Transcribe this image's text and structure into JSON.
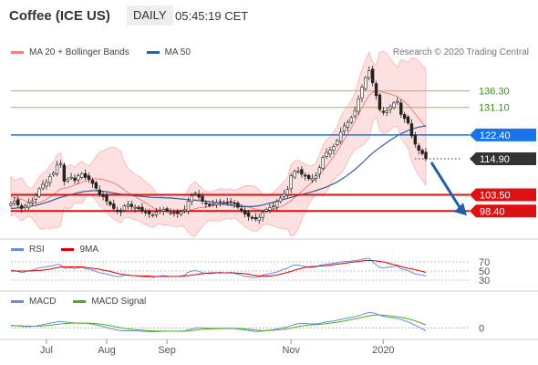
{
  "header": {
    "title": "Coffee (ICE US)",
    "period": "DAILY",
    "time": "05:45:19 CET"
  },
  "copyright": "Research © 2020 Trading Central",
  "legend_main": [
    {
      "label": "MA 20 + Bollinger Bands",
      "color": "#f08080"
    },
    {
      "label": "MA 50",
      "color": "#2f5f9f"
    }
  ],
  "legend_rsi": [
    {
      "label": "RSI",
      "color": "#6a8fd8"
    },
    {
      "label": "9MA",
      "color": "#e00000"
    }
  ],
  "legend_macd": [
    {
      "label": "MACD",
      "color": "#6a8fd8"
    },
    {
      "label": "MACD Signal",
      "color": "#4caf1a"
    }
  ],
  "chart_data": [
    {
      "type": "candlestick",
      "xlabels": [
        "Jul",
        "Aug",
        "Sep",
        "Nov",
        "2020"
      ],
      "ylim": [
        93,
        146
      ],
      "levels": [
        {
          "value": 136.3,
          "label": "136.30",
          "kind": "resistance-line",
          "color": "#8cc63f"
        },
        {
          "value": 131.1,
          "label": "131.10",
          "kind": "resistance-line",
          "color": "#8cc63f"
        },
        {
          "value": 122.4,
          "label": "122.40",
          "kind": "pivot",
          "color": "#1a73e8"
        },
        {
          "value": 114.9,
          "label": "114.90",
          "kind": "last-price",
          "color": "#333333"
        },
        {
          "value": 103.5,
          "label": "103.50",
          "kind": "support",
          "color": "#dd1111"
        },
        {
          "value": 98.4,
          "label": "98.40",
          "kind": "support",
          "color": "#dd1111"
        }
      ],
      "close": [
        100.8,
        101.5,
        100.3,
        99.2,
        100.1,
        101.0,
        101.6,
        103.3,
        105.4,
        106.8,
        107.4,
        109.3,
        110.4,
        112.9,
        113.4,
        107.8,
        108.5,
        109.1,
        108.0,
        109.5,
        110.2,
        109.0,
        108.4,
        107.1,
        105.6,
        103.6,
        102.9,
        101.5,
        100.4,
        99.2,
        98.6,
        98.1,
        100.0,
        100.3,
        99.8,
        99.6,
        99.1,
        98.4,
        98.0,
        97.5,
        97.2,
        98.0,
        98.6,
        98.9,
        98.4,
        97.9,
        97.7,
        97.6,
        98.2,
        98.9,
        101.5,
        103.2,
        104.0,
        102.8,
        101.5,
        100.6,
        100.1,
        100.6,
        101.0,
        101.4,
        101.2,
        100.9,
        101.3,
        100.7,
        99.6,
        98.6,
        97.4,
        96.7,
        96.1,
        95.9,
        96.4,
        97.9,
        98.9,
        99.5,
        100.1,
        101.4,
        102.5,
        103.8,
        105.2,
        109.6,
        110.9,
        111.0,
        110.0,
        109.4,
        108.6,
        108.7,
        109.5,
        112.1,
        115.4,
        116.9,
        117.6,
        118.8,
        120.6,
        123.4,
        125.3,
        126.4,
        127.9,
        130.1,
        133.8,
        137.5,
        140.5,
        142.7,
        138.9,
        134.8,
        130.4,
        129.5,
        130.0,
        131.3,
        132.5,
        133.0,
        128.9,
        127.6,
        126.2,
        122.1,
        119.5,
        117.6,
        116.5,
        114.9
      ],
      "ma20": [
        103.0,
        102.7,
        102.4,
        102.1,
        101.6,
        101.2,
        100.9,
        100.9,
        101.1,
        101.5,
        102.1,
        102.8,
        103.6,
        104.6,
        105.4,
        105.6,
        105.8,
        106.2,
        106.6,
        107.1,
        107.5,
        107.8,
        108.2,
        108.5,
        108.6,
        108.5,
        108.3,
        108.0,
        107.7,
        107.2,
        106.6,
        105.9,
        105.1,
        104.2,
        103.5,
        102.9,
        102.3,
        101.6,
        100.9,
        100.2,
        99.5,
        99.0,
        98.7,
        98.5,
        98.3,
        98.2,
        98.1,
        98.0,
        98.1,
        98.2,
        98.5,
        98.8,
        99.1,
        99.4,
        99.5,
        99.7,
        99.9,
        100.0,
        100.2,
        100.4,
        100.5,
        100.6,
        100.6,
        100.6,
        100.4,
        100.2,
        99.9,
        99.6,
        99.3,
        99.0,
        98.8,
        98.7,
        98.7,
        98.8,
        99.0,
        99.3,
        99.7,
        100.2,
        100.9,
        101.7,
        102.6,
        103.6,
        104.6,
        105.6,
        106.6,
        107.6,
        108.6,
        109.8,
        111.2,
        112.6,
        114.1,
        115.6,
        117.3,
        119.1,
        120.9,
        122.8,
        124.7,
        126.7,
        128.8,
        131.0,
        133.1,
        134.9,
        135.9,
        136.2,
        136.2,
        135.9,
        135.6,
        135.3,
        134.9,
        134.5,
        133.7,
        132.8,
        131.8,
        130.5,
        129.1,
        127.7,
        126.3,
        124.9
      ],
      "ma50": [
        99.2,
        99.3,
        99.4,
        99.5,
        99.6,
        99.8,
        100.0,
        100.2,
        100.5,
        100.8,
        101.1,
        101.5,
        101.9,
        102.3,
        102.7,
        103.0,
        103.3,
        103.6,
        103.9,
        104.2,
        104.4,
        104.6,
        104.7,
        104.8,
        104.8,
        104.7,
        104.6,
        104.5,
        104.3,
        104.1,
        103.9,
        103.7,
        103.5,
        103.4,
        103.3,
        103.2,
        103.1,
        103.0,
        102.9,
        102.8,
        102.7,
        102.7,
        102.6,
        102.6,
        102.5,
        102.5,
        102.4,
        102.3,
        102.2,
        102.1,
        102.0,
        101.9,
        101.8,
        101.7,
        101.6,
        101.5,
        101.4,
        101.2,
        101.0,
        100.8,
        100.6,
        100.4,
        100.2,
        100.0,
        99.9,
        99.8,
        99.8,
        99.8,
        99.8,
        99.9,
        100.1,
        100.3,
        100.6,
        100.9,
        101.2,
        101.5,
        101.8,
        102.1,
        102.4,
        102.7,
        103.0,
        103.3,
        103.6,
        103.9,
        104.2,
        104.5,
        104.8,
        105.2,
        105.6,
        106.0,
        106.5,
        107.0,
        107.6,
        108.3,
        109.0,
        109.8,
        110.6,
        111.5,
        112.5,
        113.5,
        114.6,
        115.7,
        116.7,
        117.6,
        118.4,
        119.2,
        120.0,
        120.8,
        121.5,
        122.2,
        122.8,
        123.3,
        123.8,
        124.2,
        124.6,
        124.9,
        125.1,
        125.3
      ]
    },
    {
      "type": "line",
      "name": "RSI",
      "yticks": [
        70,
        50,
        30
      ],
      "ylim": [
        20,
        80
      ],
      "series": [
        {
          "name": "RSI",
          "values": [
            52,
            51,
            49,
            47,
            48,
            51,
            52,
            54,
            57,
            58,
            59,
            61,
            62,
            64,
            64,
            56,
            56,
            57,
            55,
            57,
            58,
            55,
            54,
            52,
            49,
            46,
            45,
            43,
            41,
            39,
            38,
            38,
            41,
            41,
            40,
            40,
            39,
            38,
            37,
            37,
            36,
            38,
            39,
            40,
            39,
            38,
            38,
            38,
            39,
            41,
            47,
            50,
            51,
            49,
            46,
            45,
            44,
            45,
            46,
            47,
            46,
            46,
            47,
            45,
            43,
            41,
            38,
            37,
            36,
            36,
            37,
            41,
            43,
            44,
            46,
            48,
            51,
            54,
            56,
            61,
            63,
            63,
            61,
            60,
            58,
            58,
            59,
            62,
            64,
            65,
            66,
            67,
            68,
            70,
            71,
            71,
            72,
            73,
            74,
            76,
            77,
            78,
            70,
            64,
            58,
            57,
            58,
            59,
            60,
            61,
            55,
            53,
            51,
            47,
            44,
            42,
            41,
            39
          ]
        },
        {
          "name": "9MA",
          "values": [
            50,
            50,
            50,
            50,
            50,
            50,
            50,
            51,
            51,
            52,
            53,
            54,
            56,
            57,
            59,
            59,
            59,
            59,
            59,
            59,
            59,
            58,
            57,
            56,
            55,
            54,
            52,
            51,
            49,
            47,
            45,
            43,
            42,
            41,
            40,
            40,
            39,
            39,
            39,
            39,
            38,
            38,
            38,
            38,
            38,
            38,
            38,
            38,
            38,
            39,
            40,
            41,
            42,
            43,
            44,
            45,
            46,
            46,
            46,
            46,
            46,
            46,
            46,
            46,
            45,
            45,
            44,
            43,
            41,
            40,
            39,
            39,
            39,
            39,
            40,
            41,
            43,
            45,
            47,
            49,
            52,
            54,
            56,
            58,
            59,
            60,
            60,
            61,
            61,
            62,
            63,
            64,
            65,
            66,
            67,
            68,
            69,
            70,
            71,
            72,
            73,
            73,
            73,
            72,
            71,
            70,
            68,
            66,
            64,
            62,
            60,
            58,
            56,
            55,
            53,
            51,
            49,
            47
          ]
        }
      ]
    },
    {
      "type": "line",
      "name": "MACD",
      "yticks": [
        0
      ],
      "ylim": [
        -1.5,
        3.5
      ],
      "series": [
        {
          "name": "MACD",
          "values": [
            0.6,
            0.55,
            0.45,
            0.35,
            0.3,
            0.3,
            0.35,
            0.45,
            0.6,
            0.75,
            0.9,
            1.05,
            1.2,
            1.35,
            1.45,
            1.35,
            1.25,
            1.2,
            1.1,
            1.1,
            1.1,
            1.05,
            0.95,
            0.85,
            0.7,
            0.5,
            0.3,
            0.1,
            -0.1,
            -0.3,
            -0.45,
            -0.6,
            -0.6,
            -0.6,
            -0.6,
            -0.6,
            -0.65,
            -0.7,
            -0.75,
            -0.8,
            -0.85,
            -0.8,
            -0.75,
            -0.7,
            -0.7,
            -0.7,
            -0.7,
            -0.7,
            -0.65,
            -0.6,
            -0.4,
            -0.2,
            0.0,
            0.05,
            0.05,
            0.0,
            -0.05,
            -0.05,
            -0.05,
            -0.05,
            -0.05,
            -0.05,
            -0.05,
            -0.1,
            -0.2,
            -0.3,
            -0.45,
            -0.55,
            -0.65,
            -0.75,
            -0.75,
            -0.65,
            -0.55,
            -0.45,
            -0.35,
            -0.2,
            -0.05,
            0.1,
            0.25,
            0.55,
            0.8,
            0.95,
            1.0,
            1.0,
            0.95,
            0.9,
            0.9,
            1.0,
            1.2,
            1.35,
            1.45,
            1.55,
            1.7,
            1.9,
            2.05,
            2.2,
            2.35,
            2.5,
            2.7,
            2.95,
            3.2,
            3.4,
            3.35,
            3.15,
            2.85,
            2.6,
            2.4,
            2.3,
            2.2,
            2.1,
            1.85,
            1.6,
            1.35,
            1.0,
            0.6,
            0.2,
            -0.2,
            -0.6
          ]
        },
        {
          "name": "MACD Signal",
          "values": [
            0.5,
            0.5,
            0.5,
            0.48,
            0.45,
            0.42,
            0.4,
            0.4,
            0.42,
            0.46,
            0.52,
            0.6,
            0.7,
            0.8,
            0.9,
            0.98,
            1.03,
            1.07,
            1.08,
            1.08,
            1.08,
            1.08,
            1.06,
            1.02,
            0.96,
            0.88,
            0.78,
            0.66,
            0.52,
            0.36,
            0.2,
            0.05,
            -0.08,
            -0.18,
            -0.27,
            -0.34,
            -0.4,
            -0.46,
            -0.52,
            -0.57,
            -0.62,
            -0.66,
            -0.68,
            -0.69,
            -0.7,
            -0.7,
            -0.7,
            -0.7,
            -0.7,
            -0.69,
            -0.64,
            -0.56,
            -0.46,
            -0.36,
            -0.28,
            -0.22,
            -0.18,
            -0.15,
            -0.13,
            -0.11,
            -0.1,
            -0.09,
            -0.08,
            -0.08,
            -0.1,
            -0.14,
            -0.2,
            -0.27,
            -0.35,
            -0.43,
            -0.5,
            -0.54,
            -0.55,
            -0.53,
            -0.49,
            -0.43,
            -0.35,
            -0.25,
            -0.14,
            0.0,
            0.16,
            0.32,
            0.46,
            0.57,
            0.65,
            0.71,
            0.76,
            0.81,
            0.89,
            0.98,
            1.07,
            1.17,
            1.28,
            1.41,
            1.55,
            1.7,
            1.85,
            2.0,
            2.15,
            2.32,
            2.5,
            2.68,
            2.82,
            2.89,
            2.89,
            2.83,
            2.74,
            2.65,
            2.56,
            2.47,
            2.35,
            2.2,
            2.03,
            1.82,
            1.58,
            1.3,
            1.0,
            0.68
          ]
        }
      ]
    }
  ]
}
